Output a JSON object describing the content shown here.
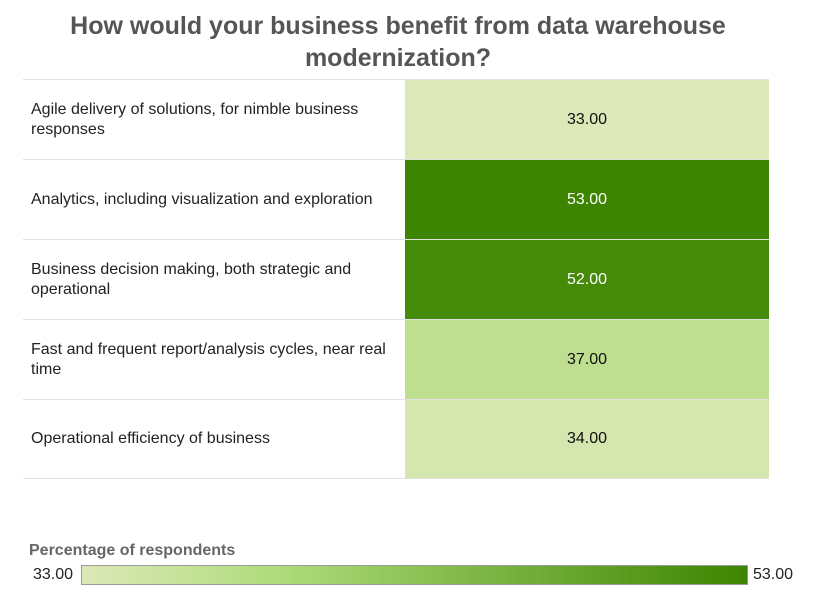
{
  "chart_data": {
    "type": "heatmap",
    "title": "How would your business benefit from data warehouse modernization?",
    "categories": [
      "Agile delivery of solutions, for nimble business responses",
      "Analytics, including visualization and exploration",
      "Business decision making, both strategic and operational",
      "Fast and frequent report/analysis cycles, near real time",
      "Operational efficiency of business"
    ],
    "values": [
      33,
      53,
      52,
      37,
      34
    ],
    "value_labels": [
      "33.00",
      "53.00",
      "52.00",
      "37.00",
      "34.00"
    ],
    "color_scale": {
      "title": "Percentage of respondents",
      "min": 33,
      "max": 53,
      "min_label": "33.00",
      "max_label": "53.00",
      "colors": [
        "#dde8b8",
        "#aedb7a",
        "#3d8500"
      ]
    },
    "legend_position": "bottom-left"
  }
}
